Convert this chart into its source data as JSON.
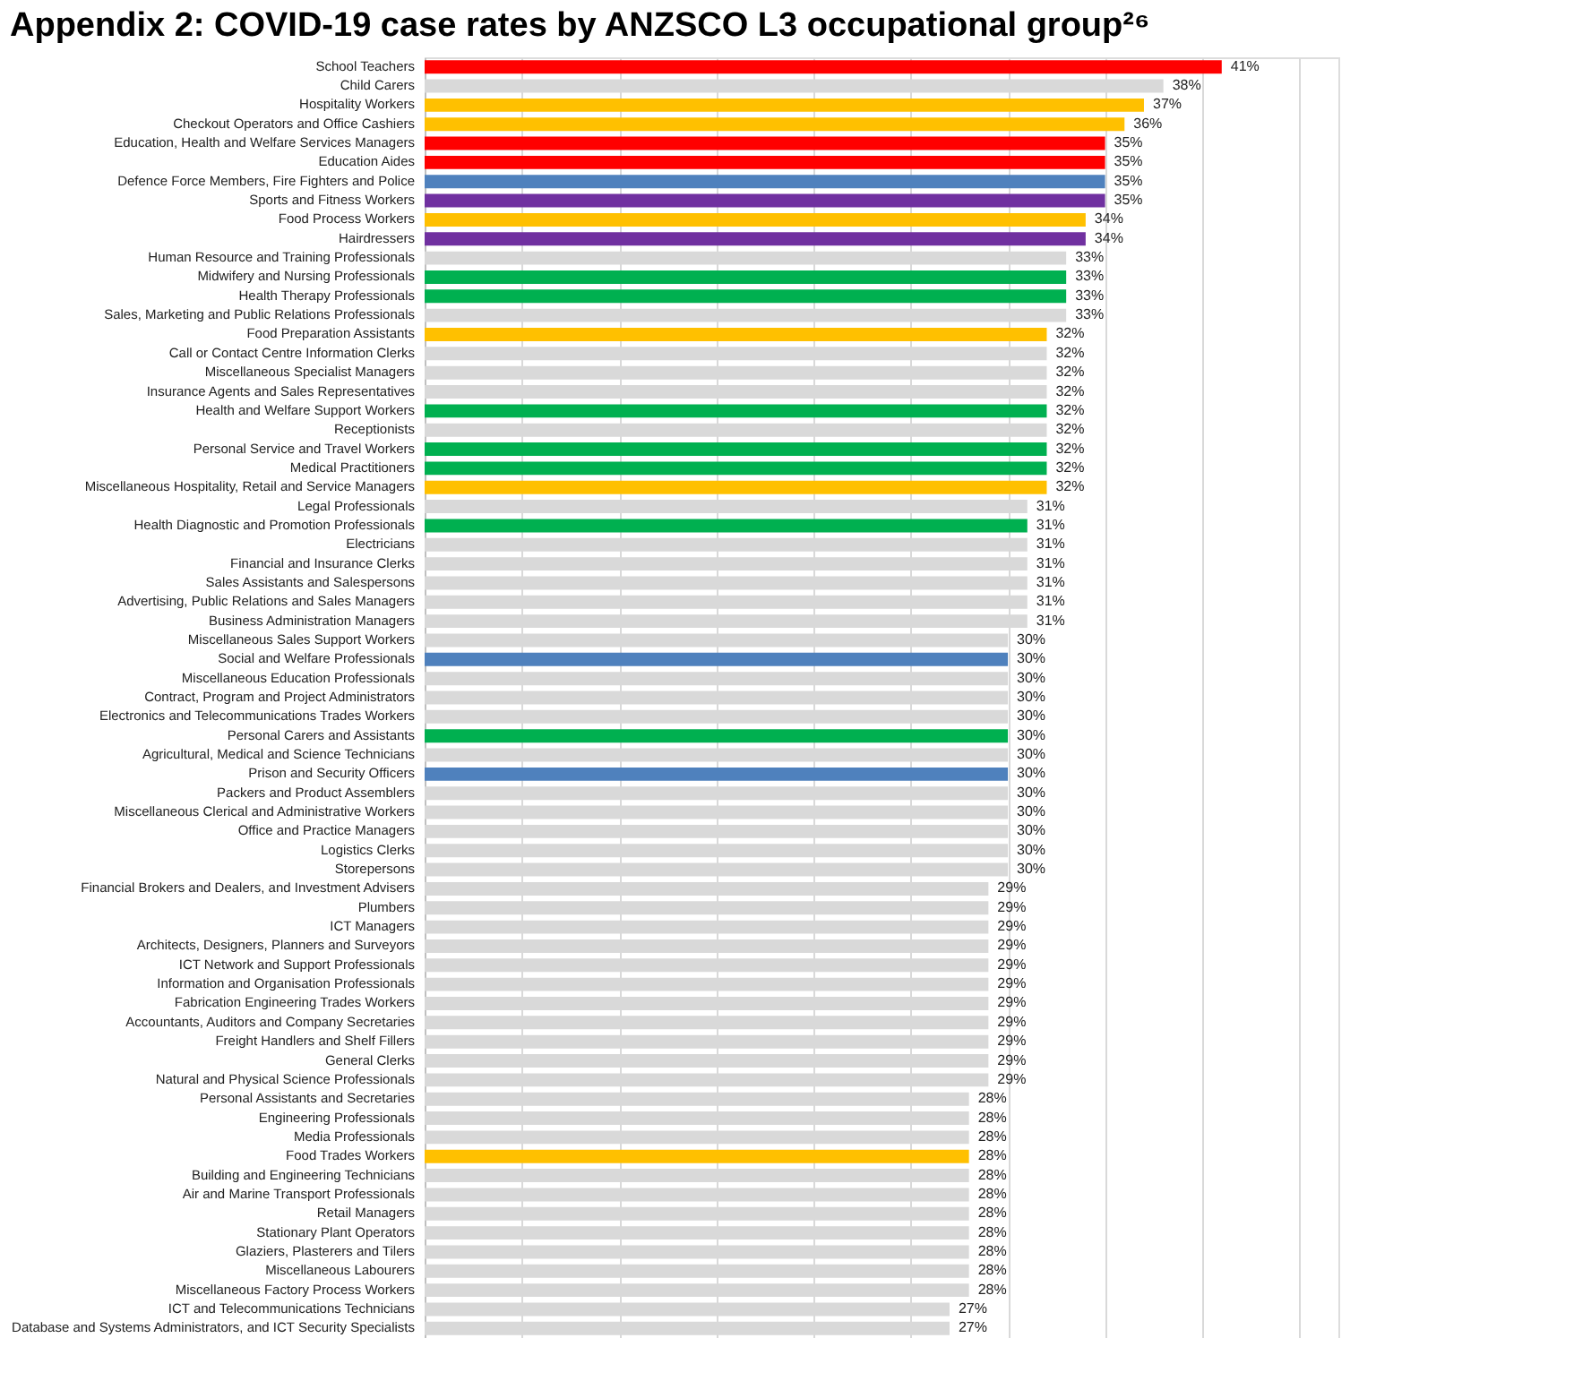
{
  "chart_data": {
    "type": "bar",
    "orientation": "horizontal",
    "title": "Appendix 2: COVID-19 case rates by ANZSCO L3 occupational group²⁶",
    "categories": [
      "School Teachers",
      "Child Carers",
      "Hospitality Workers",
      "Checkout Operators and Office Cashiers",
      "Education, Health and Welfare Services Managers",
      "Education Aides",
      "Defence Force Members, Fire Fighters and Police",
      "Sports and Fitness Workers",
      "Food Process Workers",
      "Hairdressers",
      "Human Resource and Training Professionals",
      "Midwifery and Nursing Professionals",
      "Health Therapy Professionals",
      "Sales, Marketing and Public Relations Professionals",
      "Food Preparation Assistants",
      "Call or Contact Centre Information Clerks",
      "Miscellaneous Specialist Managers",
      "Insurance Agents and Sales Representatives",
      "Health and Welfare Support Workers",
      "Receptionists",
      "Personal Service and Travel Workers",
      "Medical Practitioners",
      "Miscellaneous Hospitality, Retail and Service Managers",
      "Legal Professionals",
      "Health Diagnostic and Promotion Professionals",
      "Electricians",
      "Financial and Insurance Clerks",
      "Sales Assistants and Salespersons",
      "Advertising, Public Relations and Sales Managers",
      "Business Administration Managers",
      "Miscellaneous Sales Support Workers",
      "Social and Welfare Professionals",
      "Miscellaneous Education Professionals",
      "Contract, Program and Project Administrators",
      "Electronics and Telecommunications Trades Workers",
      "Personal Carers and Assistants",
      "Agricultural, Medical and Science Technicians",
      "Prison and Security Officers",
      "Packers and Product Assemblers",
      "Miscellaneous Clerical and Administrative Workers",
      "Office and Practice Managers",
      "Logistics Clerks",
      "Storepersons",
      "Financial Brokers and Dealers, and Investment Advisers",
      "Plumbers",
      "ICT Managers",
      "Architects, Designers, Planners and Surveyors",
      "ICT Network and Support Professionals",
      "Information and Organisation Professionals",
      "Fabrication Engineering Trades Workers",
      "Accountants, Auditors and Company Secretaries",
      "Freight Handlers and Shelf Fillers",
      "General Clerks",
      "Natural and Physical Science Professionals",
      "Personal Assistants and Secretaries",
      "Engineering Professionals",
      "Media Professionals",
      "Food Trades Workers",
      "Building and Engineering Technicians",
      "Air and Marine Transport Professionals",
      "Retail Managers",
      "Stationary Plant Operators",
      "Glaziers, Plasterers and Tilers",
      "Miscellaneous Labourers",
      "Miscellaneous Factory Process Workers",
      "ICT and Telecommunications Technicians",
      "Database and Systems Administrators, and ICT Security Specialists"
    ],
    "values": [
      41,
      38,
      37,
      36,
      35,
      35,
      35,
      35,
      34,
      34,
      33,
      33,
      33,
      33,
      32,
      32,
      32,
      32,
      32,
      32,
      32,
      32,
      32,
      31,
      31,
      31,
      31,
      31,
      31,
      31,
      30,
      30,
      30,
      30,
      30,
      30,
      30,
      30,
      30,
      30,
      30,
      30,
      30,
      29,
      29,
      29,
      29,
      29,
      29,
      29,
      29,
      29,
      29,
      29,
      28,
      28,
      28,
      28,
      28,
      28,
      28,
      28,
      28,
      28,
      28,
      27,
      27
    ],
    "value_labels": [
      "41%",
      "38%",
      "37%",
      "36%",
      "35%",
      "35%",
      "35%",
      "35%",
      "34%",
      "34%",
      "33%",
      "33%",
      "33%",
      "33%",
      "32%",
      "32%",
      "32%",
      "32%",
      "32%",
      "32%",
      "32%",
      "32%",
      "32%",
      "31%",
      "31%",
      "31%",
      "31%",
      "31%",
      "31%",
      "31%",
      "30%",
      "30%",
      "30%",
      "30%",
      "30%",
      "30%",
      "30%",
      "30%",
      "30%",
      "30%",
      "30%",
      "30%",
      "30%",
      "29%",
      "29%",
      "29%",
      "29%",
      "29%",
      "29%",
      "29%",
      "29%",
      "29%",
      "29%",
      "29%",
      "28%",
      "28%",
      "28%",
      "28%",
      "28%",
      "28%",
      "28%",
      "28%",
      "28%",
      "28%",
      "28%",
      "27%",
      "27%"
    ],
    "colors": [
      "#ff0000",
      "#d9d9d9",
      "#ffc000",
      "#ffc000",
      "#ff0000",
      "#ff0000",
      "#4f81bd",
      "#7030a0",
      "#ffc000",
      "#7030a0",
      "#d9d9d9",
      "#00b050",
      "#00b050",
      "#d9d9d9",
      "#ffc000",
      "#d9d9d9",
      "#d9d9d9",
      "#d9d9d9",
      "#00b050",
      "#d9d9d9",
      "#00b050",
      "#00b050",
      "#ffc000",
      "#d9d9d9",
      "#00b050",
      "#d9d9d9",
      "#d9d9d9",
      "#d9d9d9",
      "#d9d9d9",
      "#d9d9d9",
      "#d9d9d9",
      "#4f81bd",
      "#d9d9d9",
      "#d9d9d9",
      "#d9d9d9",
      "#00b050",
      "#d9d9d9",
      "#4f81bd",
      "#d9d9d9",
      "#d9d9d9",
      "#d9d9d9",
      "#d9d9d9",
      "#d9d9d9",
      "#d9d9d9",
      "#d9d9d9",
      "#d9d9d9",
      "#d9d9d9",
      "#d9d9d9",
      "#d9d9d9",
      "#d9d9d9",
      "#d9d9d9",
      "#d9d9d9",
      "#d9d9d9",
      "#d9d9d9",
      "#d9d9d9",
      "#d9d9d9",
      "#d9d9d9",
      "#ffc000",
      "#d9d9d9",
      "#d9d9d9",
      "#d9d9d9",
      "#d9d9d9",
      "#d9d9d9",
      "#d9d9d9",
      "#d9d9d9",
      "#d9d9d9",
      "#d9d9d9"
    ],
    "xlim": [
      0,
      47
    ],
    "xticks": [
      {
        "value": 0,
        "label": null
      },
      {
        "value": 5,
        "label": null
      },
      {
        "value": 10,
        "label": null
      },
      {
        "value": 15,
        "label": null
      },
      {
        "value": 20,
        "label": null
      },
      {
        "value": 25,
        "label": null
      },
      {
        "value": 30,
        "label": null
      },
      {
        "value": 35,
        "label": null
      },
      {
        "value": 40,
        "label": null
      },
      {
        "value": 45,
        "label": null
      }
    ],
    "grid": "x",
    "tick_labels": "y"
  }
}
